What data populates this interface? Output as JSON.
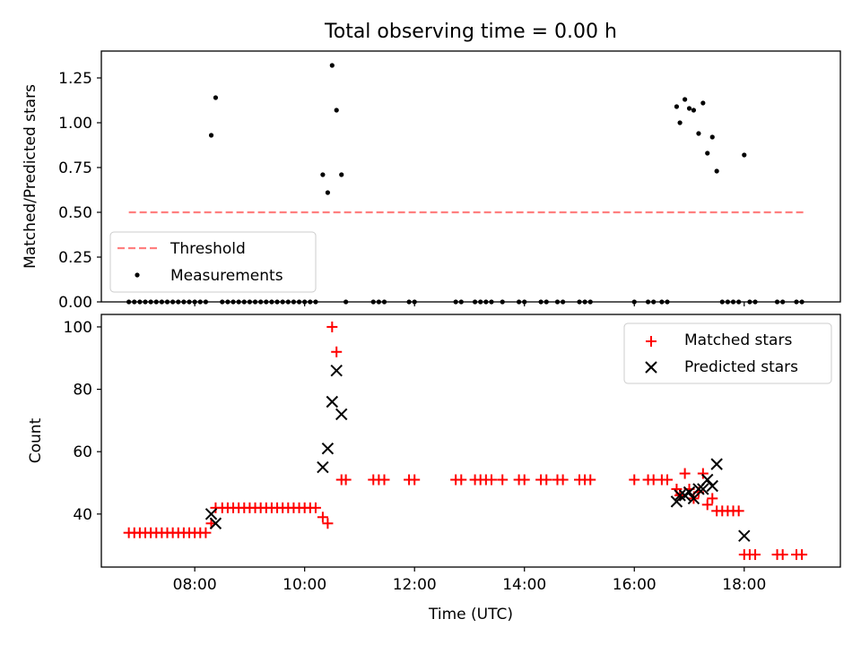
{
  "chart_data": [
    {
      "type": "scatter",
      "title": "Total observing time = 0.00 h",
      "xlabel": "",
      "ylabel": "Matched/Predicted stars",
      "xlim": [
        6.3,
        19.75
      ],
      "ylim": [
        0,
        1.4
      ],
      "yticks": [
        0.0,
        0.25,
        0.5,
        0.75,
        1.0,
        1.25
      ],
      "ytick_labels": [
        "0.00",
        "0.25",
        "0.50",
        "0.75",
        "1.00",
        "1.25"
      ],
      "xticks": [
        8,
        10,
        12,
        14,
        16,
        18
      ],
      "legend": {
        "position": "lower-left",
        "threshold_label": "Threshold",
        "measurements_label": "Measurements"
      },
      "threshold": {
        "value": 0.5,
        "x_range": [
          6.8,
          19.1
        ],
        "color": "#ff7f7f"
      },
      "measurements": {
        "color": "#000000",
        "x": [
          8.3,
          8.38,
          10.33,
          10.42,
          10.5,
          10.58,
          10.67,
          16.77,
          16.83,
          16.92,
          17.0,
          17.08,
          17.17,
          17.25,
          17.33,
          17.42,
          17.5,
          18.0
        ],
        "y": [
          0.93,
          1.14,
          0.71,
          0.61,
          1.32,
          1.07,
          0.71,
          1.09,
          1.0,
          1.13,
          1.08,
          1.07,
          0.94,
          1.11,
          0.83,
          0.92,
          0.73,
          0.82
        ]
      },
      "zero_measurements": {
        "color": "#000000",
        "x": [
          6.8,
          6.9,
          7.0,
          7.1,
          7.2,
          7.3,
          7.4,
          7.5,
          7.6,
          7.7,
          7.8,
          7.9,
          8.0,
          8.1,
          8.2,
          8.5,
          8.6,
          8.7,
          8.8,
          8.9,
          9.0,
          9.1,
          9.2,
          9.3,
          9.4,
          9.5,
          9.6,
          9.7,
          9.8,
          9.9,
          10.0,
          10.1,
          10.2,
          10.75,
          11.25,
          11.35,
          11.45,
          11.9,
          12.0,
          12.75,
          12.85,
          13.1,
          13.2,
          13.3,
          13.4,
          13.6,
          13.9,
          14.0,
          14.3,
          14.4,
          14.6,
          14.7,
          15.0,
          15.1,
          15.2,
          16.0,
          16.25,
          16.35,
          16.5,
          16.6,
          17.6,
          17.7,
          17.8,
          17.9,
          18.1,
          18.2,
          18.6,
          18.7,
          18.95,
          19.05
        ]
      }
    },
    {
      "type": "scatter",
      "title": "",
      "xlabel": "Time (UTC)",
      "ylabel": "Count",
      "xlim": [
        6.3,
        19.75
      ],
      "ylim": [
        23,
        104
      ],
      "yticks": [
        40,
        60,
        80,
        100
      ],
      "ytick_labels": [
        "40",
        "60",
        "80",
        "100"
      ],
      "xticks": [
        8,
        10,
        12,
        14,
        16,
        18
      ],
      "xtick_labels": [
        "08:00",
        "10:00",
        "12:00",
        "14:00",
        "16:00",
        "18:00"
      ],
      "legend": {
        "position": "upper-right",
        "matched_label": "Matched stars",
        "predicted_label": "Predicted stars"
      },
      "series": [
        {
          "name": "Matched stars",
          "color": "#ff0000",
          "marker": "plus",
          "x": [
            6.8,
            6.9,
            7.0,
            7.1,
            7.2,
            7.3,
            7.4,
            7.5,
            7.6,
            7.7,
            7.8,
            7.9,
            8.0,
            8.1,
            8.2,
            8.3,
            8.38,
            8.5,
            8.6,
            8.7,
            8.8,
            8.9,
            9.0,
            9.1,
            9.2,
            9.3,
            9.4,
            9.5,
            9.6,
            9.7,
            9.8,
            9.9,
            10.0,
            10.1,
            10.2,
            10.33,
            10.42,
            10.5,
            10.58,
            10.67,
            10.75,
            11.25,
            11.35,
            11.45,
            11.9,
            12.0,
            12.75,
            12.85,
            13.1,
            13.2,
            13.3,
            13.4,
            13.6,
            13.9,
            14.0,
            14.3,
            14.4,
            14.6,
            14.7,
            15.0,
            15.1,
            15.2,
            16.0,
            16.25,
            16.35,
            16.5,
            16.6,
            16.77,
            16.83,
            16.92,
            17.0,
            17.08,
            17.17,
            17.25,
            17.33,
            17.42,
            17.5,
            17.6,
            17.7,
            17.8,
            17.9,
            18.0,
            18.1,
            18.2,
            18.6,
            18.7,
            18.95,
            19.05
          ],
          "y": [
            34,
            34,
            34,
            34,
            34,
            34,
            34,
            34,
            34,
            34,
            34,
            34,
            34,
            34,
            34,
            37,
            42,
            42,
            42,
            42,
            42,
            42,
            42,
            42,
            42,
            42,
            42,
            42,
            42,
            42,
            42,
            42,
            42,
            42,
            42,
            39,
            37,
            100,
            92,
            51,
            51,
            51,
            51,
            51,
            51,
            51,
            51,
            51,
            51,
            51,
            51,
            51,
            51,
            51,
            51,
            51,
            51,
            51,
            51,
            51,
            51,
            51,
            51,
            51,
            51,
            51,
            51,
            48,
            46,
            53,
            48,
            45,
            47,
            53,
            43,
            45,
            41,
            41,
            41,
            41,
            41,
            27,
            27,
            27,
            27,
            27,
            27,
            27
          ]
        },
        {
          "name": "Predicted stars",
          "color": "#000000",
          "marker": "x",
          "x": [
            8.3,
            8.38,
            10.33,
            10.42,
            10.5,
            10.58,
            10.67,
            16.77,
            16.83,
            16.92,
            17.0,
            17.08,
            17.17,
            17.25,
            17.33,
            17.42,
            17.5,
            18.0
          ],
          "y": [
            40,
            37,
            55,
            61,
            76,
            86,
            72,
            44,
            46,
            46,
            47,
            45,
            48,
            48,
            51,
            49,
            56,
            33
          ]
        }
      ]
    }
  ]
}
